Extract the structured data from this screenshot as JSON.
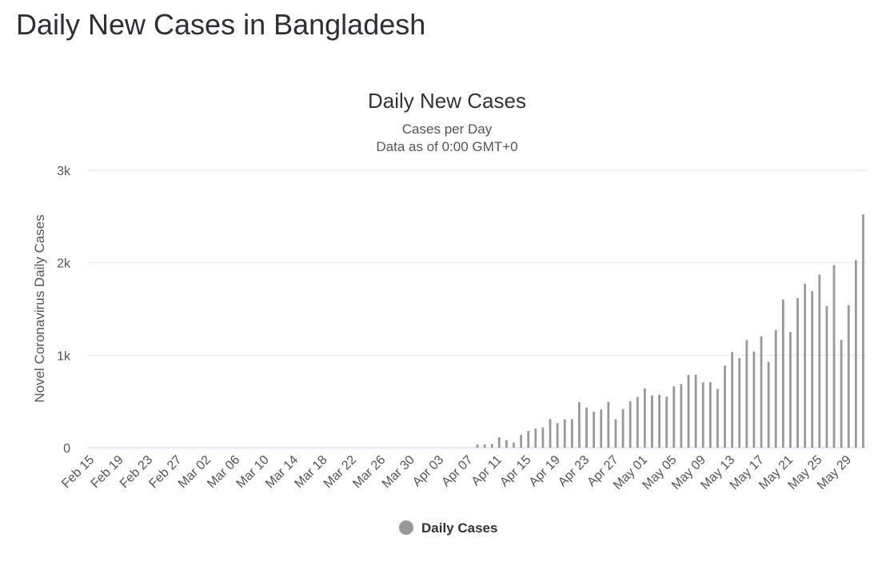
{
  "page": {
    "title": "Daily New Cases in Bangladesh"
  },
  "chart_data": {
    "type": "bar",
    "title": "Daily New Cases",
    "subtitle": "Cases per Day",
    "subtitle2": "Data as of 0:00 GMT+0",
    "xlabel": "",
    "ylabel": "Novel Coronavirus Daily Cases",
    "ylim": [
      0,
      3000
    ],
    "yticks": [
      0,
      1000,
      2000,
      3000
    ],
    "ytick_labels": [
      "0",
      "1k",
      "2k",
      "3k"
    ],
    "grid": true,
    "legend": {
      "placement": "bottom-center",
      "label": "Daily Cases"
    },
    "colors": {
      "bar": "#999999",
      "grid": "#e6e6e6",
      "baseline": "#ccd6eb"
    },
    "xtick_labels": [
      "Feb 15",
      "Feb 19",
      "Feb 23",
      "Feb 27",
      "Mar 02",
      "Mar 06",
      "Mar 10",
      "Mar 14",
      "Mar 18",
      "Mar 22",
      "Mar 26",
      "Mar 30",
      "Apr 03",
      "Apr 07",
      "Apr 11",
      "Apr 15",
      "Apr 19",
      "Apr 23",
      "Apr 27",
      "May 01",
      "May 05",
      "May 09",
      "May 13",
      "May 17",
      "May 21",
      "May 25",
      "May 29"
    ],
    "start_date": "Feb 15",
    "series": [
      {
        "name": "Daily Cases",
        "values": [
          0,
          0,
          0,
          0,
          0,
          0,
          0,
          0,
          0,
          0,
          0,
          0,
          0,
          0,
          0,
          0,
          0,
          0,
          0,
          0,
          0,
          0,
          0,
          0,
          0,
          0,
          0,
          0,
          0,
          0,
          0,
          0,
          0,
          0,
          0,
          0,
          0,
          0,
          0,
          0,
          0,
          0,
          0,
          0,
          0,
          0,
          0,
          0,
          0,
          0,
          0,
          0,
          0,
          35,
          35,
          41,
          112,
          82,
          54,
          139,
          182,
          209,
          219,
          312,
          266,
          306,
          309,
          492,
          434,
          390,
          414,
          497,
          307,
          418,
          503,
          549,
          641,
          564,
          571,
          552,
          663,
          688,
          786,
          790,
          706,
          709,
          636,
          887,
          1034,
          969,
          1162,
          1041,
          1202,
          930,
          1273,
          1602,
          1251,
          1617,
          1773,
          1694,
          1873,
          1532,
          1975,
          1166,
          1541,
          2029,
          2523
        ]
      }
    ]
  }
}
